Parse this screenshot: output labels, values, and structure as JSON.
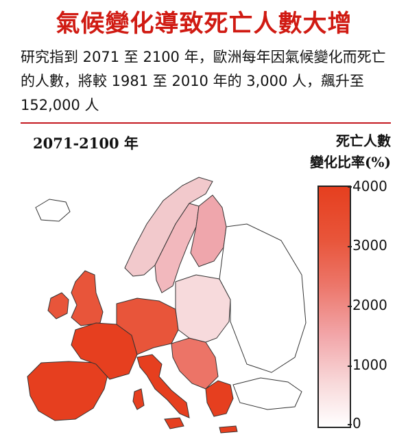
{
  "headline": "氣候變化導致死亡人數大增",
  "subtitle": "研究指到 2071 至 2100 年，歐洲每年因氣候變化而死亡的人數，將較 1981 至 2010 年的 3,000 人，飆升至 152,000 人",
  "period_label": "2071-2100 年",
  "legend": {
    "title_line1": "死亡人數",
    "title_line2": "變化比率(%)",
    "ticks": [
      "4000",
      "3000",
      "2000",
      "1000",
      "0"
    ],
    "colors": {
      "high": "#e63f1f",
      "mid": "#ec7467",
      "low": "#f2a6a9",
      "zero": "#ffffff"
    }
  },
  "map_regions": [
    {
      "region": "Iberia",
      "change_pct": 3600
    },
    {
      "region": "Italy",
      "change_pct": 3600
    },
    {
      "region": "France",
      "change_pct": 3300
    },
    {
      "region": "Greece",
      "change_pct": 3300
    },
    {
      "region": "Central Europe",
      "change_pct": 2800
    },
    {
      "region": "Balkans",
      "change_pct": 2800
    },
    {
      "region": "British Isles",
      "change_pct": 2500
    },
    {
      "region": "Scandinavia",
      "change_pct": 1000
    },
    {
      "region": "Eastern Europe",
      "change_pct": 500
    }
  ]
}
